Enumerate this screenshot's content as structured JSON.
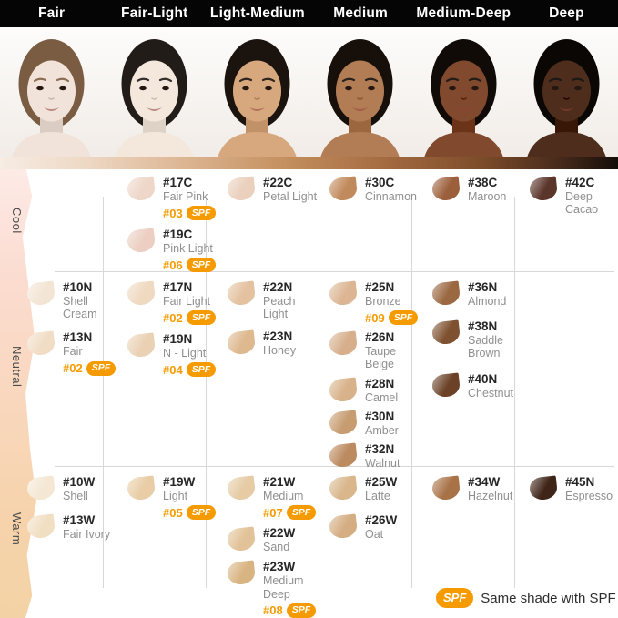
{
  "header": {
    "categories": [
      "Fair",
      "Fair-Light",
      "Light-Medium",
      "Medium",
      "Medium-Deep",
      "Deep"
    ]
  },
  "models": [
    {
      "category": "Fair",
      "skin": "#f1e3d9",
      "hair": "#7a5c42"
    },
    {
      "category": "Fair-Light",
      "skin": "#f4e8dd",
      "hair": "#221c19"
    },
    {
      "category": "Light-Medium",
      "skin": "#d7a87e",
      "hair": "#1b130e"
    },
    {
      "category": "Medium",
      "skin": "#b27c55",
      "hair": "#160f0a"
    },
    {
      "category": "Medium-Deep",
      "skin": "#81492d",
      "hair": "#110b07"
    },
    {
      "category": "Deep",
      "skin": "#4e2d1c",
      "hair": "#0b0704"
    }
  ],
  "shade_table": {
    "rows": [
      {
        "label": "Cool",
        "cells": [
          [],
          [
            {
              "code": "#17C",
              "name": "Fair Pink",
              "spf": "#03",
              "color": "#eed6c9"
            },
            {
              "code": "#19C",
              "name": "Pink Light",
              "spf": "#06",
              "color": "#eccfc2"
            }
          ],
          [
            {
              "code": "#22C",
              "name": "Petal Light",
              "color": "#ead0bd"
            }
          ],
          [
            {
              "code": "#30C",
              "name": "Cinnamon",
              "color": "#c18a5c"
            }
          ],
          [
            {
              "code": "#38C",
              "name": "Maroon",
              "color": "#9c5f3b"
            }
          ],
          [
            {
              "code": "#42C",
              "name": "Deep Cacao",
              "color": "#5a352a"
            }
          ]
        ]
      },
      {
        "label": "Neutral",
        "cells": [
          [
            {
              "code": "#10N",
              "name": "Shell Cream",
              "color": "#f3e5d5"
            },
            {
              "code": "#13N",
              "name": "Fair",
              "spf": "#02",
              "color": "#f1ddc6"
            }
          ],
          [
            {
              "code": "#17N",
              "name": "Fair Light",
              "spf": "#02",
              "color": "#efd9c1"
            },
            {
              "code": "#19N",
              "name": "N - Light",
              "spf": "#04",
              "color": "#ead1b4"
            }
          ],
          [
            {
              "code": "#22N",
              "name": "Peach Light",
              "color": "#e4c2a0"
            },
            {
              "code": "#23N",
              "name": "Honey",
              "color": "#deb88f"
            }
          ],
          [
            {
              "code": "#25N",
              "name": "Bronze",
              "spf": "#09",
              "color": "#dcb694"
            },
            {
              "code": "#26N",
              "name": "Taupe Beige",
              "color": "#d7af8d"
            },
            {
              "code": "#28N",
              "name": "Camel",
              "color": "#d8b28a"
            },
            {
              "code": "#30N",
              "name": "Amber",
              "color": "#c79c71"
            },
            {
              "code": "#32N",
              "name": "Walnut",
              "color": "#bb8a5e"
            }
          ],
          [
            {
              "code": "#36N",
              "name": "Almond",
              "color": "#9a6841"
            },
            {
              "code": "#38N",
              "name": "Saddle Brown",
              "color": "#7e5130"
            },
            {
              "code": "#40N",
              "name": "Chestnut",
              "color": "#6b4227"
            }
          ],
          []
        ]
      },
      {
        "label": "Warm",
        "cells": [
          [
            {
              "code": "#10W",
              "name": "Shell",
              "color": "#f4e8d4"
            },
            {
              "code": "#13W",
              "name": "Fair Ivory",
              "color": "#f1dfc4"
            }
          ],
          [
            {
              "code": "#19W",
              "name": "Light",
              "spf": "#05",
              "color": "#e8cda6"
            }
          ],
          [
            {
              "code": "#21W",
              "name": "Medium",
              "spf": "#07",
              "color": "#e6cba5"
            },
            {
              "code": "#22W",
              "name": "Sand",
              "color": "#e2c298"
            },
            {
              "code": "#23W",
              "name": "Medium Deep",
              "spf": "#08",
              "color": "#d9b483"
            }
          ],
          [
            {
              "code": "#25W",
              "name": "Latte",
              "color": "#d9b68c"
            },
            {
              "code": "#26W",
              "name": "Oat",
              "color": "#d4ad82"
            }
          ],
          [
            {
              "code": "#34W",
              "name": "Hazelnut",
              "color": "#a87247"
            }
          ],
          [
            {
              "code": "#45N",
              "name": "Espresso",
              "color": "#3f2418"
            }
          ]
        ]
      }
    ]
  },
  "legend": {
    "spf_badge": "SPF",
    "text": "Same shade with SPF"
  },
  "colors": {
    "spf_orange": "#F59B00",
    "header_bg": "#050505"
  }
}
